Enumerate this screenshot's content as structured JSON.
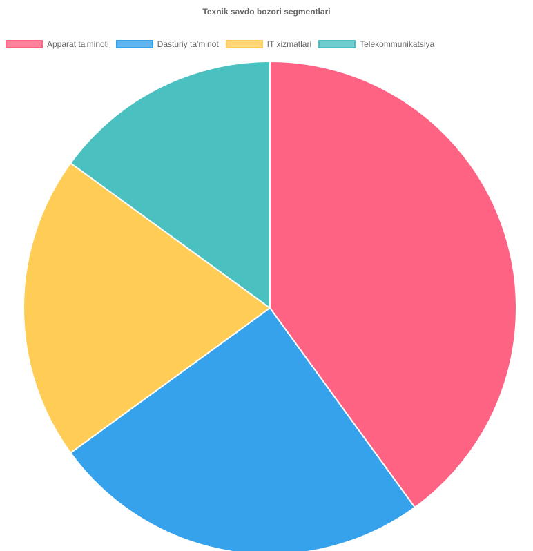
{
  "chart_data": {
    "type": "pie",
    "title": "Texnik savdo bozori segmentlari",
    "legend_position": "top",
    "categories": [
      "Apparat ta'minoti",
      "Dasturiy ta'minot",
      "IT xizmatlari",
      "Telekommunikatsiya"
    ],
    "values": [
      40,
      25,
      20,
      15
    ],
    "colors": [
      "#ff6384",
      "#36a2eb",
      "#ffcd56",
      "#4bc0c0"
    ],
    "border_color": "#ffffff"
  }
}
